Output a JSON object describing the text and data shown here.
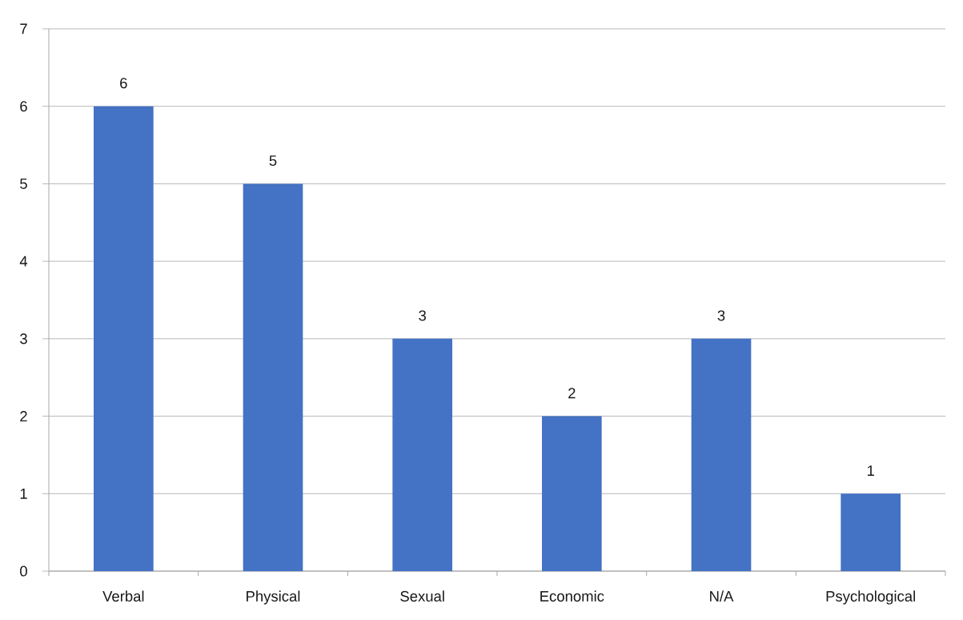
{
  "chart_data": {
    "type": "bar",
    "categories": [
      "Verbal",
      "Physical",
      "Sexual",
      "Economic",
      "N/A",
      "Psychological"
    ],
    "values": [
      6,
      5,
      3,
      2,
      3,
      1
    ],
    "color": "#4472c4",
    "ylim": [
      0,
      7
    ],
    "yticks": [
      0,
      1,
      2,
      3,
      4,
      5,
      6,
      7
    ],
    "grid": "y",
    "data_labels": true
  }
}
